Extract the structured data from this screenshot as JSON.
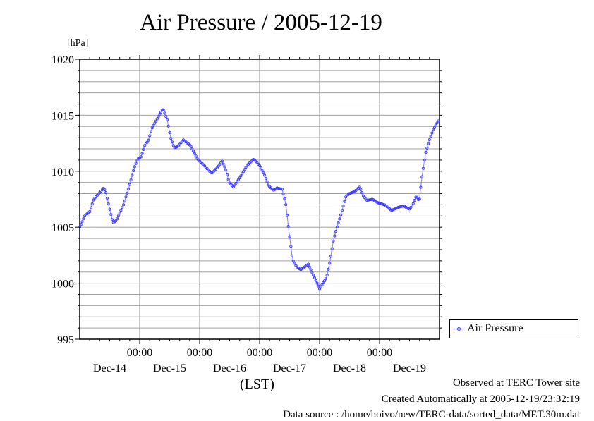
{
  "chart_data": {
    "type": "line",
    "title": "Air Pressure / 2005-12-19",
    "ylabel": "[hPa]",
    "xlabel": "(LST)",
    "ylim": [
      995,
      1020
    ],
    "yticks": [
      995,
      1000,
      1005,
      1010,
      1015,
      1020
    ],
    "yticklabels": [
      "995",
      "1000",
      "1005",
      "1010",
      "1015",
      "1020"
    ],
    "yminor_step": 1,
    "xlim_hours": [
      0,
      144
    ],
    "x_origin": "Dec-14 00:00",
    "x_interval_minutes": 30,
    "xticks": [
      {
        "hour": 24,
        "time": "00:00",
        "date": "Dec-15"
      },
      {
        "hour": 48,
        "time": "00:00",
        "date": "Dec-16"
      },
      {
        "hour": 72,
        "time": "00:00",
        "date": "Dec-17"
      },
      {
        "hour": 96,
        "time": "00:00",
        "date": "Dec-18"
      },
      {
        "hour": 120,
        "time": "00:00",
        "date": "Dec-19"
      }
    ],
    "date_labels": [
      {
        "hour": 12,
        "label": "Dec-14"
      },
      {
        "hour": 36,
        "label": "Dec-15"
      },
      {
        "hour": 60,
        "label": "Dec-16"
      },
      {
        "hour": 84,
        "label": "Dec-17"
      },
      {
        "hour": 108,
        "label": "Dec-18"
      },
      {
        "hour": 132,
        "label": "Dec-19"
      }
    ],
    "grid": true,
    "legend_position": "bottom-right-outside",
    "series": [
      {
        "name": "Air Pressure",
        "color": "#3a3aff",
        "anchor_points": [
          [
            0.0,
            1005.0
          ],
          [
            2.0,
            1006.0
          ],
          [
            4.0,
            1006.4
          ],
          [
            5.6,
            1007.5
          ],
          [
            7.6,
            1008.0
          ],
          [
            9.6,
            1008.5
          ],
          [
            10.4,
            1008.2
          ],
          [
            11.9,
            1006.7
          ],
          [
            13.3,
            1005.4
          ],
          [
            14.7,
            1005.6
          ],
          [
            17.5,
            1007.0
          ],
          [
            19.5,
            1008.4
          ],
          [
            21.8,
            1010.3
          ],
          [
            23.2,
            1011.1
          ],
          [
            24.6,
            1011.3
          ],
          [
            26.0,
            1012.3
          ],
          [
            27.4,
            1012.7
          ],
          [
            28.8,
            1013.8
          ],
          [
            30.8,
            1014.6
          ],
          [
            33.3,
            1015.6
          ],
          [
            35.0,
            1014.6
          ],
          [
            36.4,
            1013.0
          ],
          [
            37.8,
            1012.1
          ],
          [
            39.2,
            1012.2
          ],
          [
            41.5,
            1012.8
          ],
          [
            44.3,
            1012.3
          ],
          [
            47.1,
            1011.1
          ],
          [
            49.9,
            1010.5
          ],
          [
            52.8,
            1009.8
          ],
          [
            55.0,
            1010.3
          ],
          [
            57.0,
            1010.9
          ],
          [
            58.4,
            1010.2
          ],
          [
            59.8,
            1009.0
          ],
          [
            61.5,
            1008.6
          ],
          [
            64.0,
            1009.4
          ],
          [
            66.9,
            1010.5
          ],
          [
            69.7,
            1011.1
          ],
          [
            72.0,
            1010.5
          ],
          [
            73.9,
            1009.7
          ],
          [
            75.6,
            1008.7
          ],
          [
            77.6,
            1008.3
          ],
          [
            79.0,
            1008.5
          ],
          [
            81.0,
            1008.4
          ],
          [
            82.4,
            1007.2
          ],
          [
            83.8,
            1004.5
          ],
          [
            85.2,
            1002.1
          ],
          [
            86.7,
            1001.5
          ],
          [
            88.4,
            1001.2
          ],
          [
            90.3,
            1001.5
          ],
          [
            91.5,
            1001.7
          ],
          [
            92.9,
            1001.0
          ],
          [
            94.6,
            1000.2
          ],
          [
            96.0,
            999.5
          ],
          [
            97.4,
            1000.0
          ],
          [
            98.8,
            1000.5
          ],
          [
            100.2,
            1002.0
          ],
          [
            101.6,
            1003.9
          ],
          [
            103.1,
            1005.1
          ],
          [
            104.5,
            1006.1
          ],
          [
            106.5,
            1007.7
          ],
          [
            107.9,
            1008.0
          ],
          [
            110.1,
            1008.2
          ],
          [
            112.1,
            1008.6
          ],
          [
            113.5,
            1007.8
          ],
          [
            114.9,
            1007.4
          ],
          [
            117.2,
            1007.5
          ],
          [
            119.2,
            1007.2
          ],
          [
            122.0,
            1007.0
          ],
          [
            124.8,
            1006.5
          ],
          [
            127.7,
            1006.8
          ],
          [
            129.7,
            1006.9
          ],
          [
            131.9,
            1006.6
          ],
          [
            133.3,
            1007.0
          ],
          [
            134.7,
            1007.8
          ],
          [
            135.9,
            1007.3
          ],
          [
            136.8,
            1009.2
          ],
          [
            138.4,
            1011.6
          ],
          [
            139.8,
            1012.7
          ],
          [
            141.3,
            1013.6
          ],
          [
            142.7,
            1014.2
          ],
          [
            143.8,
            1014.6
          ]
        ]
      }
    ]
  },
  "legend": {
    "label": "Air Pressure"
  },
  "notes": {
    "site": "Observed at TERC Tower site",
    "created": "Created Automatically at 2005-12-19/23:32:19",
    "source": "Data source : /home/hoivo/new/TERC-data/sorted_data/MET.30m.dat"
  }
}
